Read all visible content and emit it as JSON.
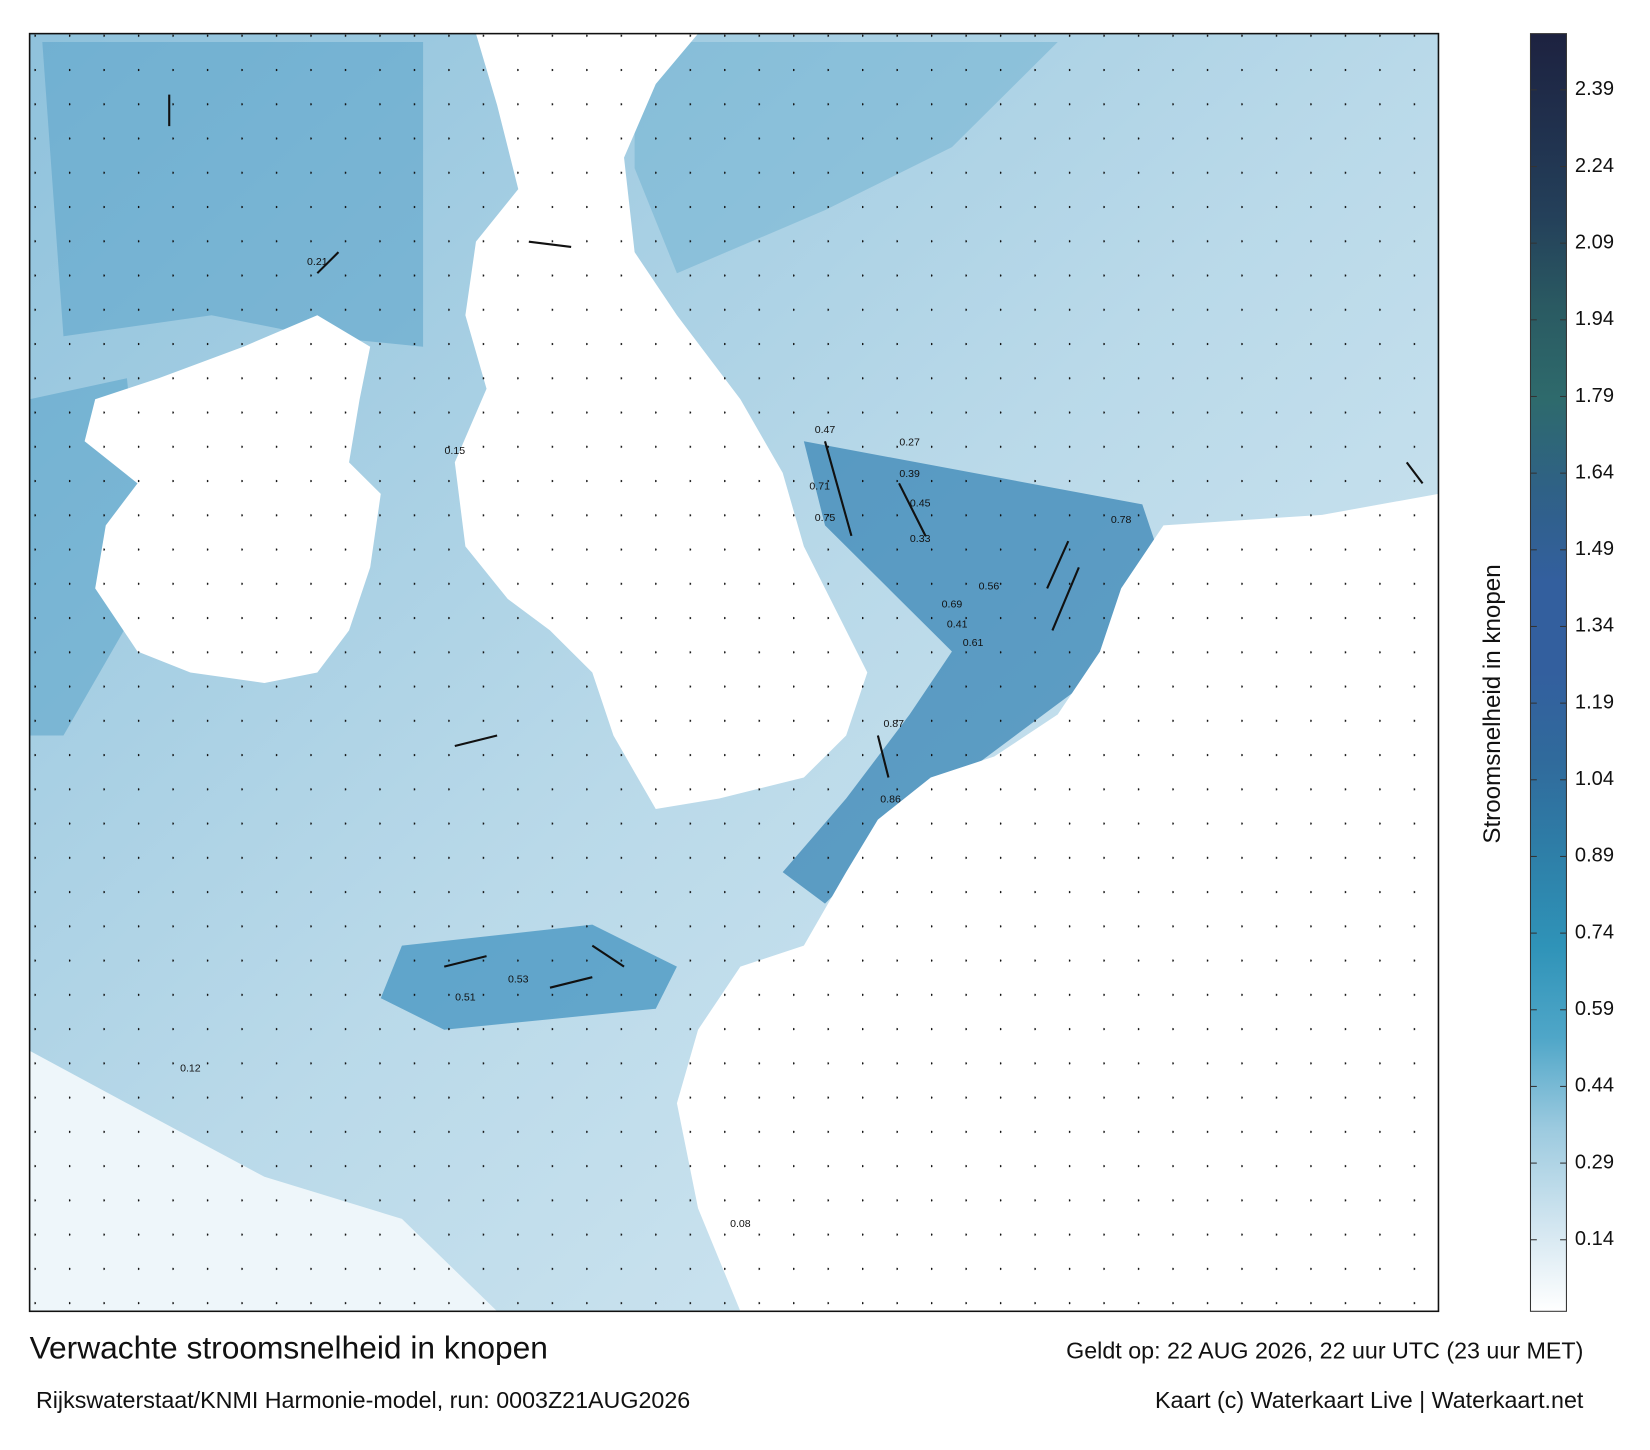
{
  "map": {
    "title": "Verwachte stroomsnelheid in knopen",
    "subtitle": "Rijkswaterstaat/KNMI Harmonie-model, run: 0003Z21AUG2026",
    "valid_time": "Geldt op: 22 AUG 2026, 22 uur UTC (23 uur MET)",
    "credit": "Kaart (c) Waterkaart Live | Waterkaart.net",
    "colorbar": {
      "label": "Stroomsnelheid in knopen",
      "clim": [
        0,
        2.5
      ],
      "ticks": [
        0.14,
        0.29,
        0.44,
        0.59,
        0.74,
        0.89,
        1.04,
        1.19,
        1.34,
        1.49,
        1.64,
        1.79,
        1.94,
        2.09,
        2.24,
        2.39
      ],
      "colors": [
        "#ffffff",
        "#cfe4ef",
        "#9ccadf",
        "#4fa6c8",
        "#2f93b8",
        "#2e7fa8",
        "#306b9c",
        "#335f9e",
        "#335f9e",
        "#2f6186",
        "#2e6a6c",
        "#2a5a62",
        "#24405a",
        "#20304d",
        "#1d2240"
      ]
    },
    "speed_labels": [
      "0.78",
      "0.86",
      "0.87",
      "0.75",
      "0.71",
      "0.69",
      "0.61",
      "0.56",
      "0.53",
      "0.51",
      "0.47",
      "0.45",
      "0.41",
      "0.39",
      "0.33",
      "0.27",
      "0.21",
      "0.15",
      "0.12",
      "0.08"
    ]
  }
}
